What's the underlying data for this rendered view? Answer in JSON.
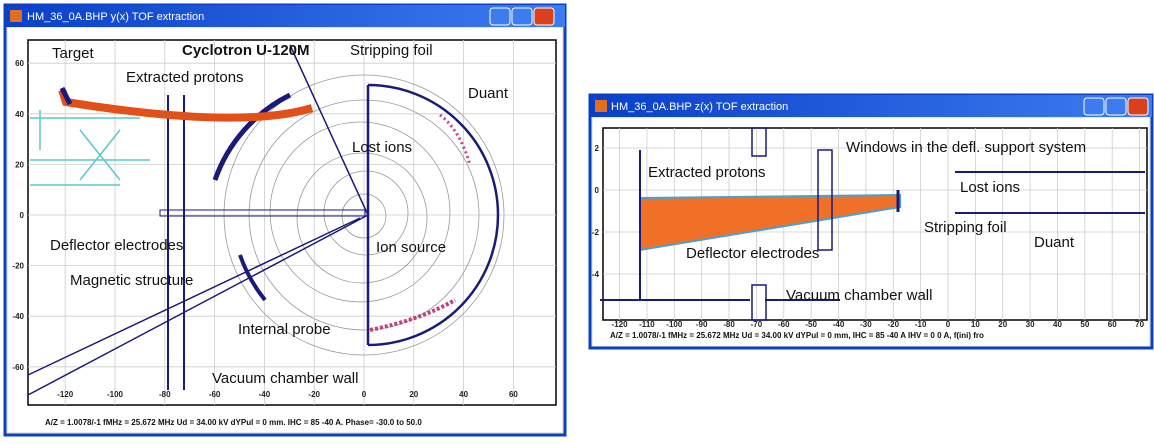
{
  "windows": [
    {
      "title": "HM_36_0A.BHP y(x) TOF extraction",
      "plot_title": "Cyclotron U-120M",
      "xticks": [
        -120,
        -100,
        -80,
        -60,
        -40,
        -20,
        0,
        20,
        40,
        60
      ],
      "yticks": [
        60,
        40,
        20,
        0,
        -20,
        -40,
        -60
      ],
      "labels": [
        "Target",
        "Stripping foil",
        "Extracted protons",
        "Duant",
        "Lost ions",
        "Deflector electrodes",
        "Ion source",
        "Magnetic structure",
        "Internal probe",
        "Vacuum chamber wall"
      ],
      "footer": "A/Z = 1.0078/-1  fMHz = 25.672 MHz  Ud = 34.00 kV  dYPul = 0 mm.  IHC =  85  -40 A.  Phase= -30.0 to 50.0"
    },
    {
      "title": "HM_36_0A.BHP z(x) TOF extraction",
      "xticks": [
        -120,
        -110,
        -100,
        -90,
        -80,
        -70,
        -60,
        -50,
        -40,
        -30,
        -20,
        -10,
        0,
        10,
        20,
        30,
        40,
        50,
        60,
        70
      ],
      "yticks": [
        2,
        0,
        -2,
        -4
      ],
      "labels": [
        "Windows in the defl. support system",
        "Extracted protons",
        "Lost ions",
        "Stripping foil",
        "Deflector electrodes",
        "Duant",
        "Vacuum chamber wall"
      ],
      "footer": "A/Z =  1.0078/-1  fMHz = 25.672 MHz  Ud = 34.00 kV  dYPul =  0 mm,  IHC =  85  -40 A  IHV =  0   0 A,  f(ini) fro"
    }
  ]
}
